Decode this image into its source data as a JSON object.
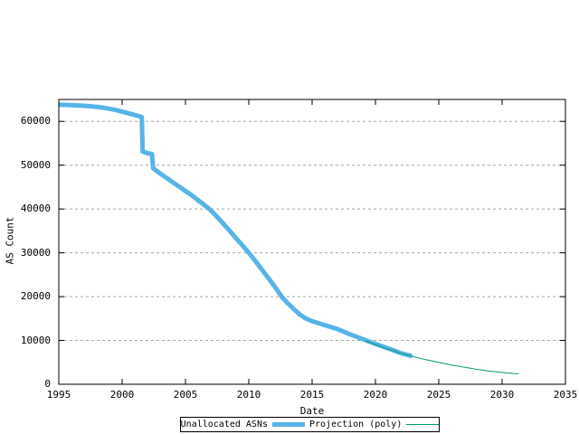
{
  "chart_data": {
    "type": "line",
    "title": "",
    "xlabel": "Date",
    "ylabel": "AS Count",
    "xlim": [
      1995,
      2035
    ],
    "ylim": [
      0,
      65000
    ],
    "x_ticks": [
      {
        "value": 1995,
        "label": "1995"
      },
      {
        "value": 2000,
        "label": "2000"
      },
      {
        "value": 2005,
        "label": "2005"
      },
      {
        "value": 2010,
        "label": "2010"
      },
      {
        "value": 2015,
        "label": "2015"
      },
      {
        "value": 2020,
        "label": "2020"
      },
      {
        "value": 2025,
        "label": "2025"
      },
      {
        "value": 2030,
        "label": "2030"
      },
      {
        "value": 2035,
        "label": "2035"
      }
    ],
    "y_ticks": [
      {
        "value": 0,
        "label": "0"
      },
      {
        "value": 10000,
        "label": "10000"
      },
      {
        "value": 20000,
        "label": "20000"
      },
      {
        "value": 30000,
        "label": "30000"
      },
      {
        "value": 40000,
        "label": "40000"
      },
      {
        "value": 50000,
        "label": "50000"
      },
      {
        "value": 60000,
        "label": "60000"
      }
    ],
    "grid": "horizontal dashed gridlines at y ticks",
    "grid_color": "#a8a8a8",
    "axis_color": "#000000",
    "legend": {
      "position": "bottom center, outside plot, bordered box",
      "entries": [
        {
          "label": "Unallocated ASNs",
          "color": "#56B4E9",
          "line_width": 5
        },
        {
          "label": "Projection (poly)",
          "color": "#009E73",
          "line_width": 1
        }
      ]
    },
    "series": [
      {
        "name": "Unallocated ASNs",
        "color": "#56B4E9",
        "width": 5,
        "points": [
          [
            1995.0,
            63800
          ],
          [
            1995.5,
            63760
          ],
          [
            1996.0,
            63700
          ],
          [
            1996.5,
            63640
          ],
          [
            1997.0,
            63560
          ],
          [
            1997.5,
            63450
          ],
          [
            1998.0,
            63300
          ],
          [
            1998.5,
            63120
          ],
          [
            1999.0,
            62880
          ],
          [
            1999.5,
            62580
          ],
          [
            2000.0,
            62230
          ],
          [
            2000.5,
            61850
          ],
          [
            2001.0,
            61450
          ],
          [
            2001.55,
            61000
          ],
          [
            2001.62,
            53100
          ],
          [
            2002.0,
            52750
          ],
          [
            2002.35,
            52550
          ],
          [
            2002.45,
            49300
          ],
          [
            2003.0,
            48100
          ],
          [
            2003.5,
            47100
          ],
          [
            2004.0,
            46100
          ],
          [
            2004.5,
            45100
          ],
          [
            2005.0,
            44100
          ],
          [
            2005.5,
            43100
          ],
          [
            2006.0,
            42000
          ],
          [
            2006.5,
            40900
          ],
          [
            2007.0,
            39700
          ],
          [
            2007.5,
            38200
          ],
          [
            2008.0,
            36600
          ],
          [
            2008.5,
            35000
          ],
          [
            2009.0,
            33300
          ],
          [
            2009.5,
            31700
          ],
          [
            2010.0,
            30000
          ],
          [
            2010.5,
            28200
          ],
          [
            2011.0,
            26300
          ],
          [
            2011.5,
            24400
          ],
          [
            2012.0,
            22500
          ],
          [
            2012.6,
            20000
          ],
          [
            2013.0,
            18700
          ],
          [
            2013.5,
            17300
          ],
          [
            2014.0,
            16000
          ],
          [
            2014.5,
            15000
          ],
          [
            2015.0,
            14400
          ],
          [
            2015.5,
            13950
          ],
          [
            2016.0,
            13500
          ],
          [
            2016.5,
            13050
          ],
          [
            2017.0,
            12600
          ],
          [
            2017.5,
            12000
          ],
          [
            2018.0,
            11400
          ],
          [
            2018.5,
            10850
          ],
          [
            2019.0,
            10300
          ],
          [
            2019.5,
            9750
          ],
          [
            2020.0,
            9200
          ],
          [
            2020.5,
            8700
          ],
          [
            2021.0,
            8200
          ],
          [
            2021.5,
            7650
          ],
          [
            2022.0,
            7100
          ],
          [
            2022.5,
            6700
          ],
          [
            2022.9,
            6400
          ]
        ]
      },
      {
        "name": "Projection (poly)",
        "color": "#009E73",
        "width": 1,
        "points": [
          [
            2019.2,
            9900
          ],
          [
            2019.6,
            9500
          ],
          [
            2020.0,
            9050
          ],
          [
            2020.5,
            8500
          ],
          [
            2021.0,
            8000
          ],
          [
            2021.5,
            7550
          ],
          [
            2022.0,
            7100
          ],
          [
            2022.5,
            6700
          ],
          [
            2023.0,
            6300
          ],
          [
            2023.5,
            5950
          ],
          [
            2024.0,
            5600
          ],
          [
            2024.5,
            5300
          ],
          [
            2025.0,
            5000
          ],
          [
            2025.5,
            4700
          ],
          [
            2026.0,
            4400
          ],
          [
            2026.5,
            4150
          ],
          [
            2027.0,
            3900
          ],
          [
            2027.5,
            3650
          ],
          [
            2028.0,
            3400
          ],
          [
            2028.5,
            3200
          ],
          [
            2029.0,
            3000
          ],
          [
            2029.5,
            2850
          ],
          [
            2030.0,
            2700
          ],
          [
            2030.5,
            2550
          ],
          [
            2031.0,
            2430
          ],
          [
            2031.3,
            2380
          ]
        ]
      }
    ]
  }
}
